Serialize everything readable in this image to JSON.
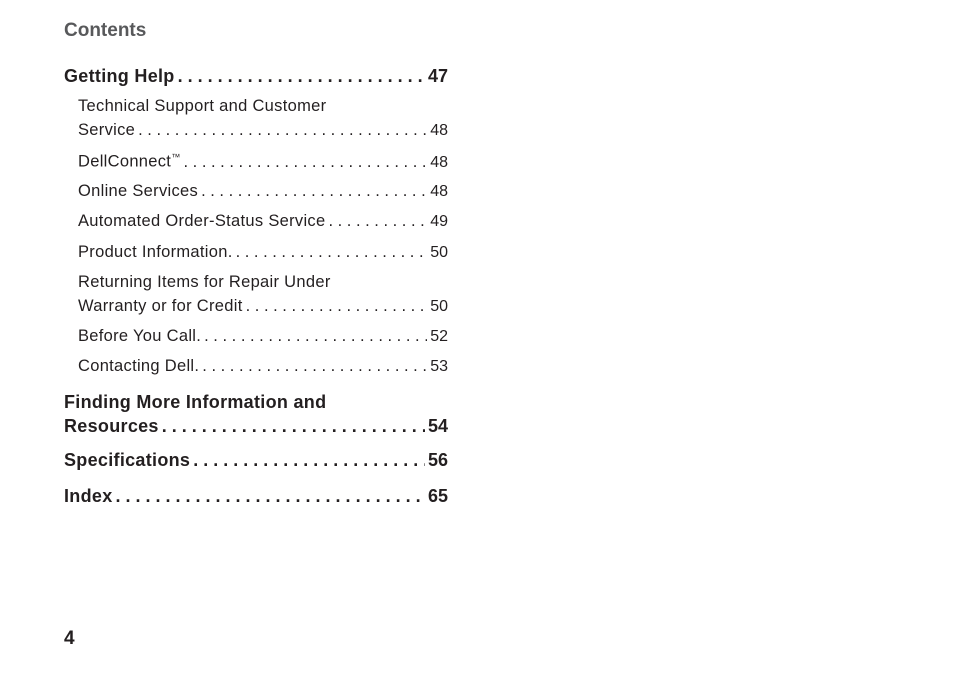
{
  "header": "Contents",
  "entries": {
    "getting_help": {
      "text": "Getting Help",
      "page": "47"
    },
    "tech_support": {
      "line1": "Technical Support and Customer",
      "line2": "Service",
      "page": "48"
    },
    "dellconnect": {
      "text": "DellConnect",
      "tm": "™",
      "page": "48"
    },
    "online_services": {
      "text": "Online Services",
      "page": "48"
    },
    "automated_order": {
      "text": "Automated Order-Status Service",
      "page": "49"
    },
    "product_info": {
      "text": "Product Information.",
      "page": "50"
    },
    "returning_items": {
      "line1": "Returning Items for Repair Under",
      "line2": "Warranty or for Credit",
      "page": "50"
    },
    "before_you_call": {
      "text": "Before You Call.",
      "page": "52"
    },
    "contacting_dell": {
      "text": "Contacting Dell.",
      "page": "53"
    },
    "finding_more": {
      "line1": "Finding More Information and",
      "line2": "Resources",
      "page": "54"
    },
    "specifications": {
      "text": "Specifications",
      "page": "56"
    },
    "index": {
      "text": "Index",
      "page": "65"
    }
  },
  "page_number": "4"
}
